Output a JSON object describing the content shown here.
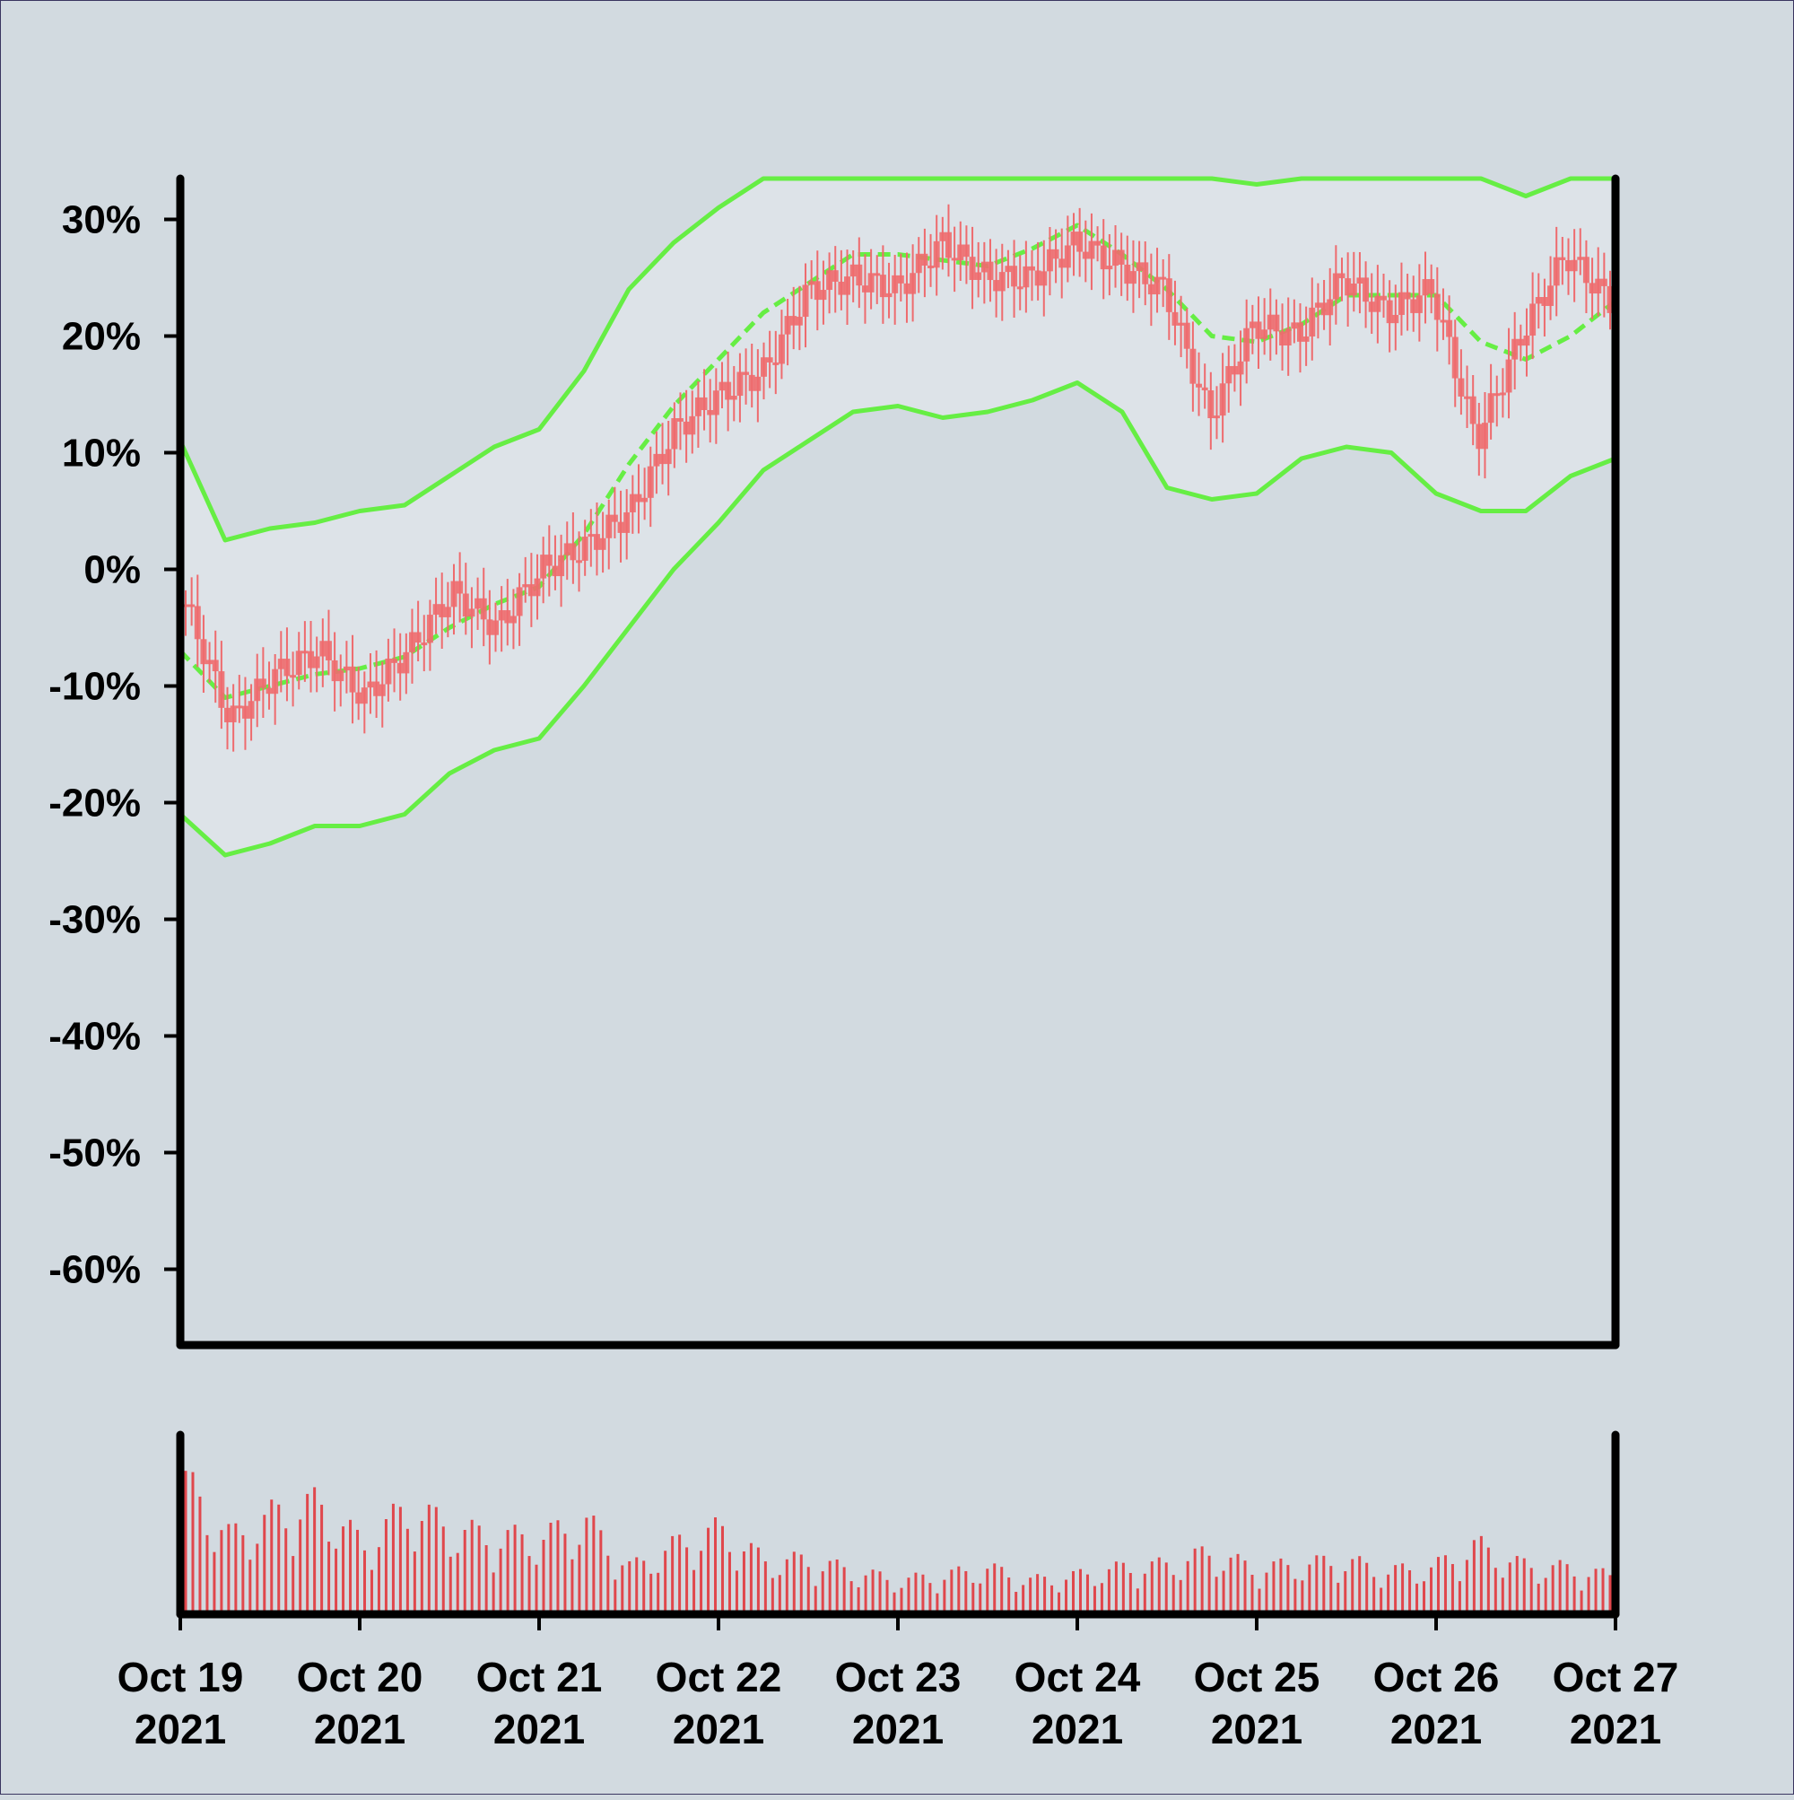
{
  "chart_data": {
    "type": "candlestick",
    "title": "",
    "xlabel": "",
    "ylabel": "",
    "x_axis": {
      "type": "date",
      "range": [
        "2021-10-19",
        "2021-10-27"
      ],
      "ticks": [
        {
          "date": "2021-10-19",
          "line1": "Oct 19",
          "line2": "2021"
        },
        {
          "date": "2021-10-20",
          "line1": "Oct 20",
          "line2": "2021"
        },
        {
          "date": "2021-10-21",
          "line1": "Oct 21",
          "line2": "2021"
        },
        {
          "date": "2021-10-22",
          "line1": "Oct 22",
          "line2": "2021"
        },
        {
          "date": "2021-10-23",
          "line1": "Oct 23",
          "line2": "2021"
        },
        {
          "date": "2021-10-24",
          "line1": "Oct 24",
          "line2": "2021"
        },
        {
          "date": "2021-10-25",
          "line1": "Oct 25",
          "line2": "2021"
        },
        {
          "date": "2021-10-26",
          "line1": "Oct 26",
          "line2": "2021"
        },
        {
          "date": "2021-10-27",
          "line1": "Oct 27",
          "line2": "2021"
        }
      ]
    },
    "y_axis": {
      "unit": "%",
      "range": [
        -66.5,
        33.5
      ],
      "ticks": [
        {
          "value": 30,
          "label": "30%"
        },
        {
          "value": 20,
          "label": "20%"
        },
        {
          "value": 10,
          "label": "10%"
        },
        {
          "value": 0,
          "label": "0%"
        },
        {
          "value": -10,
          "label": "-10%"
        },
        {
          "value": -20,
          "label": "-20%"
        },
        {
          "value": -30,
          "label": "-30%"
        },
        {
          "value": -40,
          "label": "-40%"
        },
        {
          "value": -50,
          "label": "-50%"
        },
        {
          "value": -60,
          "label": "-60%"
        }
      ]
    },
    "grid": false,
    "legend": "none",
    "colors": {
      "background": "#d2dae0",
      "band_fill": "#dde3e8",
      "candles": "#ee6b6e",
      "volume": "#e0474c",
      "bands": "#66ee44",
      "axes": "#000000"
    },
    "price_series": {
      "x": [
        "2021-10-19 00:00",
        "2021-10-19 06:00",
        "2021-10-19 12:00",
        "2021-10-19 18:00",
        "2021-10-20 00:00",
        "2021-10-20 06:00",
        "2021-10-20 12:00",
        "2021-10-20 18:00",
        "2021-10-21 00:00",
        "2021-10-21 06:00",
        "2021-10-21 12:00",
        "2021-10-21 18:00",
        "2021-10-22 00:00",
        "2021-10-22 06:00",
        "2021-10-22 12:00",
        "2021-10-22 18:00",
        "2021-10-23 00:00",
        "2021-10-23 06:00",
        "2021-10-23 12:00",
        "2021-10-23 18:00",
        "2021-10-24 00:00",
        "2021-10-24 06:00",
        "2021-10-24 12:00",
        "2021-10-24 18:00",
        "2021-10-25 00:00",
        "2021-10-25 06:00",
        "2021-10-25 12:00",
        "2021-10-25 18:00",
        "2021-10-26 00:00",
        "2021-10-26 06:00",
        "2021-10-26 12:00",
        "2021-10-26 18:00",
        "2021-10-27 00:00"
      ],
      "close_pct": [
        -3,
        -13,
        -9,
        -7,
        -11,
        -7,
        -2,
        -5,
        0,
        2,
        5,
        12,
        15,
        17,
        24,
        25,
        24,
        28,
        25,
        25,
        28,
        26,
        24,
        13,
        21,
        20,
        25,
        22,
        24,
        11,
        20,
        27,
        23
      ]
    },
    "bands": {
      "upper_pct": [
        11,
        2.5,
        3.5,
        4,
        5,
        5.5,
        8,
        10.5,
        12,
        17,
        24,
        28,
        31,
        33.5,
        33.5,
        33.5,
        33.5,
        33.5,
        33.5,
        33.5,
        33.5,
        33.5,
        33.5,
        33.5,
        33,
        33.5,
        33.5,
        33.5,
        33.5,
        33.5,
        32,
        33.5,
        33.5
      ],
      "middle_pct": [
        -7,
        -11,
        -10,
        -9,
        -8.5,
        -7.5,
        -5,
        -3,
        -1.5,
        3,
        9,
        14,
        18,
        22,
        24.5,
        27,
        27,
        26.5,
        26,
        27.5,
        29.5,
        27,
        24,
        20,
        19.5,
        21,
        23.5,
        23.5,
        23.5,
        19.5,
        18,
        20,
        23
      ],
      "lower_pct": [
        -21,
        -24.5,
        -23.5,
        -22,
        -22,
        -21,
        -17.5,
        -15.5,
        -14.5,
        -10,
        -5,
        0,
        4,
        8.5,
        11,
        13.5,
        14,
        13,
        13.5,
        14.5,
        16,
        13.5,
        7,
        6,
        6.5,
        9.5,
        10.5,
        10,
        6.5,
        5,
        5,
        8,
        9.5
      ]
    },
    "volume": {
      "relative_values": [
        0.85,
        0.5,
        0.65,
        0.72,
        0.45,
        0.7,
        0.55,
        0.5,
        0.5,
        0.6,
        0.3,
        0.45,
        0.55,
        0.35,
        0.35,
        0.28,
        0.22,
        0.25,
        0.3,
        0.22,
        0.25,
        0.3,
        0.32,
        0.4,
        0.3,
        0.32,
        0.35,
        0.28,
        0.3,
        0.45,
        0.32,
        0.3,
        0.25
      ]
    }
  }
}
